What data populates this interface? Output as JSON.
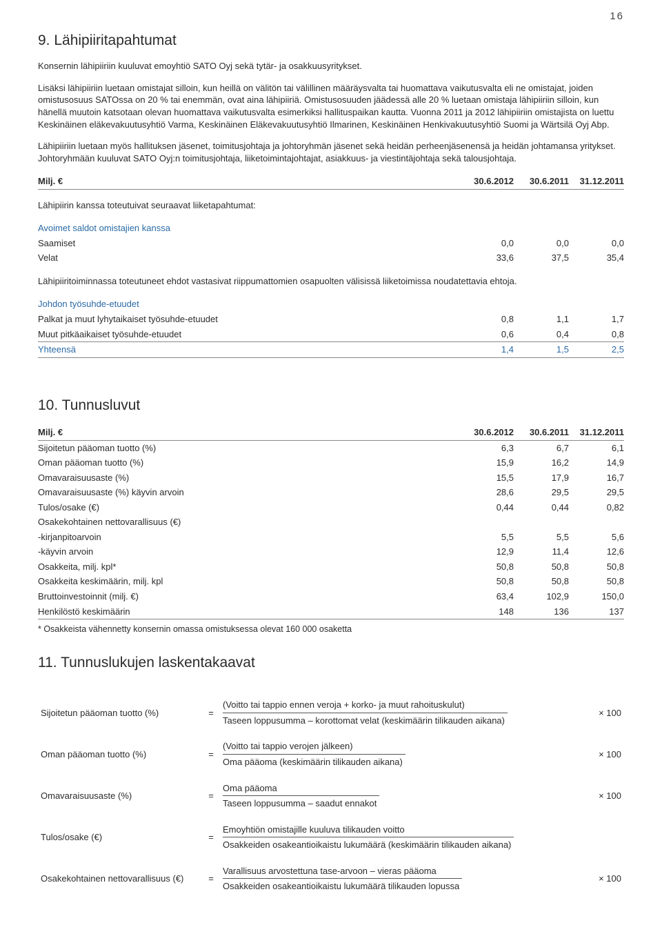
{
  "page_number": "16",
  "section9": {
    "title": "9. Lähipiiritapahtumat",
    "para1": "Konsernin lähipiiriin kuuluvat emoyhtiö SATO Oyj sekä tytär- ja osakkuusyritykset.",
    "para2": "Lisäksi lähipiiriin luetaan omistajat silloin, kun heillä on välitön tai välillinen määräysvalta tai huomattava vaikutusvalta eli ne omistajat, joiden omistusosuus SATOssa on 20 % tai enemmän, ovat aina lähipiiriä. Omistusosuuden jäädessä alle 20 % luetaan omistaja lähipiiriin silloin, kun hänellä muutoin katsotaan olevan huomattava vaikutusvalta esimerkiksi hallituspaikan kautta. Vuonna 2011 ja 2012 lähipiiriin omistajista on luettu Keskinäinen eläkevakuutusyhtiö Varma, Keskinäinen Eläkevakuutusyhtiö Ilmarinen, Keskinäinen Henkivakuutusyhtiö Suomi ja Wärtsilä Oyj Abp.",
    "para3": "Lähipiiriin luetaan myös hallituksen jäsenet, toimitusjohtaja ja johtoryhmän jäsenet sekä heidän perheenjäsenensä ja heidän johtamansa yritykset. Johtoryhmään kuuluvat SATO Oyj:n toimitusjohtaja, liiketoimintajohtajat, asiakkuus- ja viestintäjohtaja sekä talousjohtaja.",
    "table_header_label": "Milj. €",
    "col1": "30.6.2012",
    "col2": "30.6.2011",
    "col3": "31.12.2011",
    "group1_caption": "Lähipiirin kanssa toteutuivat seuraavat liiketapahtumat:",
    "group1_title": "Avoimet saldot omistajien kanssa",
    "row_saamiset": {
      "label": "Saamiset",
      "v1": "0,0",
      "v2": "0,0",
      "v3": "0,0"
    },
    "row_velat": {
      "label": "Velat",
      "v1": "33,6",
      "v2": "37,5",
      "v3": "35,4"
    },
    "note_between": "Lähipiiritoiminnassa toteutuneet ehdot vastasivat riippumattomien osapuolten välisissä liiketoimissa noudatettavia ehtoja.",
    "group2_title": "Johdon työsuhde-etuudet",
    "row_palkat": {
      "label": "Palkat ja muut lyhytaikaiset työsuhde-etuudet",
      "v1": "0,8",
      "v2": "1,1",
      "v3": "1,7"
    },
    "row_muut": {
      "label": "Muut pitkäaikaiset työsuhde-etuudet",
      "v1": "0,6",
      "v2": "0,4",
      "v3": "0,8"
    },
    "row_total": {
      "label": "Yhteensä",
      "v1": "1,4",
      "v2": "1,5",
      "v3": "2,5"
    }
  },
  "section10": {
    "title": "10. Tunnusluvut",
    "header_label": "Milj. €",
    "col1": "30.6.2012",
    "col2": "30.6.2011",
    "col3": "31.12.2011",
    "rows": [
      {
        "label": "Sijoitetun pääoman tuotto (%)",
        "v1": "6,3",
        "v2": "6,7",
        "v3": "6,1"
      },
      {
        "label": "Oman pääoman tuotto (%)",
        "v1": "15,9",
        "v2": "16,2",
        "v3": "14,9"
      },
      {
        "label": "Omavaraisuusaste (%)",
        "v1": "15,5",
        "v2": "17,9",
        "v3": "16,7"
      },
      {
        "label": "Omavaraisuusaste (%) käyvin arvoin",
        "v1": "28,6",
        "v2": "29,5",
        "v3": "29,5"
      },
      {
        "label": "Tulos/osake (€)",
        "v1": "0,44",
        "v2": "0,44",
        "v3": "0,82"
      },
      {
        "label": "Osakekohtainen nettovarallisuus (€)",
        "v1": "",
        "v2": "",
        "v3": ""
      },
      {
        "label": "-kirjanpitoarvoin",
        "v1": "5,5",
        "v2": "5,5",
        "v3": "5,6"
      },
      {
        "label": "-käyvin arvoin",
        "v1": "12,9",
        "v2": "11,4",
        "v3": "12,6"
      },
      {
        "label": "Osakkeita, milj. kpl*",
        "v1": "50,8",
        "v2": "50,8",
        "v3": "50,8"
      },
      {
        "label": "Osakkeita keskimäärin, milj. kpl",
        "v1": "50,8",
        "v2": "50,8",
        "v3": "50,8"
      },
      {
        "label": "Bruttoinvestoinnit (milj. €)",
        "v1": "63,4",
        "v2": "102,9",
        "v3": "150,0"
      },
      {
        "label": "Henkilöstö keskimäärin",
        "v1": "148",
        "v2": "136",
        "v3": "137"
      }
    ],
    "footnote": "* Osakkeista vähennetty konsernin omassa omistuksessa olevat 160 000 osaketta"
  },
  "section11": {
    "title": "11. Tunnuslukujen laskentakaavat",
    "times100": "× 100",
    "eq": "=",
    "formulas": [
      {
        "label": "Sijoitetun pääoman tuotto (%)",
        "top": "(Voitto tai tappio ennen veroja + korko- ja muut rahoituskulut)",
        "bot": "Taseen loppusumma – korottomat velat (keskimäärin tilikauden aikana)",
        "mult": true
      },
      {
        "label": "Oman pääoman tuotto (%)",
        "top": "(Voitto tai tappio verojen jälkeen)",
        "bot": "Oma pääoma (keskimäärin tilikauden aikana)",
        "mult": true
      },
      {
        "label": "Omavaraisuusaste (%)",
        "top": "Oma pääoma",
        "bot": "Taseen loppusumma – saadut ennakot",
        "mult": true
      },
      {
        "label": "Tulos/osake (€)",
        "top": "Emoyhtiön omistajille kuuluva tilikauden voitto",
        "bot": "Osakkeiden osakeantioikaistu lukumäärä (keskimäärin tilikauden aikana)",
        "mult": false
      },
      {
        "label": "Osakekohtainen nettovarallisuus (€)",
        "top": "Varallisuus arvostettuna tase-arvoon – vieras pääoma",
        "bot": "Osakkeiden osakeantioikaistu lukumäärä tilikauden lopussa",
        "mult": true
      }
    ]
  }
}
